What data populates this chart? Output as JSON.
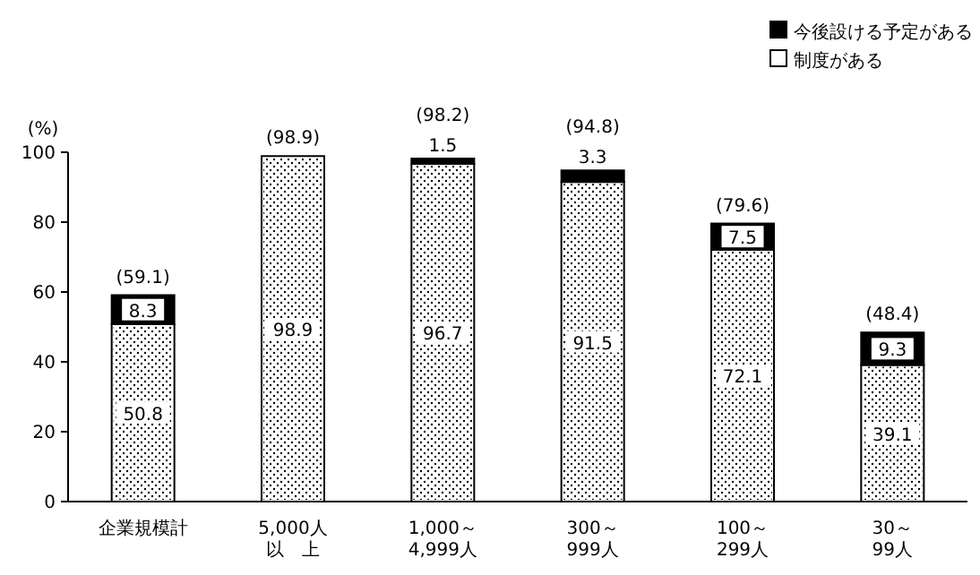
{
  "chart_data": {
    "type": "bar",
    "stacked": true,
    "ylabel": "(%)",
    "categories": [
      "企業規模計",
      "5,000人以　上",
      "1,000～4,999人",
      "300～999人",
      "100～299人",
      "30～99人"
    ],
    "series": [
      {
        "name": "制度がある",
        "color": "#ffffff",
        "values": [
          50.8,
          98.9,
          96.7,
          91.5,
          72.1,
          39.1
        ]
      },
      {
        "name": "今後設ける予定がある",
        "color": "#000000",
        "values": [
          8.3,
          null,
          1.5,
          3.3,
          7.5,
          9.3
        ]
      }
    ],
    "ylim": [
      0,
      100
    ],
    "yticks": [
      0,
      20,
      40,
      60,
      80,
      100
    ],
    "grid": false,
    "legend": "top right",
    "data_labels": true,
    "totals": [
      "(59.1)",
      "(98.9)",
      "(98.2)",
      "(94.8)",
      "(79.6)",
      "(48.4)"
    ]
  }
}
